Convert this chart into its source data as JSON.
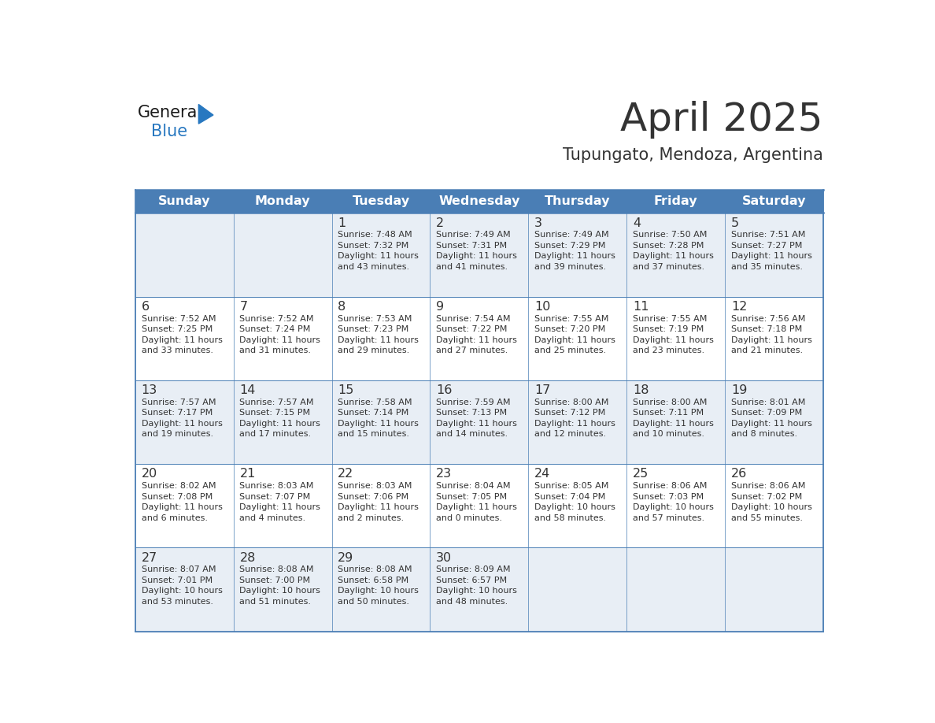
{
  "title": "April 2025",
  "subtitle": "Tupungato, Mendoza, Argentina",
  "header_bg_color": "#4a7eb5",
  "header_text_color": "#ffffff",
  "weekdays": [
    "Sunday",
    "Monday",
    "Tuesday",
    "Wednesday",
    "Thursday",
    "Friday",
    "Saturday"
  ],
  "row0_bg": "#e8eef5",
  "row1_bg": "#ffffff",
  "border_color": "#4a7eb5",
  "text_color": "#333333",
  "logo_general_color": "#1a1a1a",
  "logo_blue_color": "#2878c0",
  "days": [
    {
      "day": null,
      "col": 0,
      "row": 0
    },
    {
      "day": null,
      "col": 1,
      "row": 0
    },
    {
      "day": 1,
      "col": 2,
      "row": 0,
      "sunrise": "7:48 AM",
      "sunset": "7:32 PM",
      "daylight_h": "11 hours",
      "daylight_m": "and 43 minutes."
    },
    {
      "day": 2,
      "col": 3,
      "row": 0,
      "sunrise": "7:49 AM",
      "sunset": "7:31 PM",
      "daylight_h": "11 hours",
      "daylight_m": "and 41 minutes."
    },
    {
      "day": 3,
      "col": 4,
      "row": 0,
      "sunrise": "7:49 AM",
      "sunset": "7:29 PM",
      "daylight_h": "11 hours",
      "daylight_m": "and 39 minutes."
    },
    {
      "day": 4,
      "col": 5,
      "row": 0,
      "sunrise": "7:50 AM",
      "sunset": "7:28 PM",
      "daylight_h": "11 hours",
      "daylight_m": "and 37 minutes."
    },
    {
      "day": 5,
      "col": 6,
      "row": 0,
      "sunrise": "7:51 AM",
      "sunset": "7:27 PM",
      "daylight_h": "11 hours",
      "daylight_m": "and 35 minutes."
    },
    {
      "day": 6,
      "col": 0,
      "row": 1,
      "sunrise": "7:52 AM",
      "sunset": "7:25 PM",
      "daylight_h": "11 hours",
      "daylight_m": "and 33 minutes."
    },
    {
      "day": 7,
      "col": 1,
      "row": 1,
      "sunrise": "7:52 AM",
      "sunset": "7:24 PM",
      "daylight_h": "11 hours",
      "daylight_m": "and 31 minutes."
    },
    {
      "day": 8,
      "col": 2,
      "row": 1,
      "sunrise": "7:53 AM",
      "sunset": "7:23 PM",
      "daylight_h": "11 hours",
      "daylight_m": "and 29 minutes."
    },
    {
      "day": 9,
      "col": 3,
      "row": 1,
      "sunrise": "7:54 AM",
      "sunset": "7:22 PM",
      "daylight_h": "11 hours",
      "daylight_m": "and 27 minutes."
    },
    {
      "day": 10,
      "col": 4,
      "row": 1,
      "sunrise": "7:55 AM",
      "sunset": "7:20 PM",
      "daylight_h": "11 hours",
      "daylight_m": "and 25 minutes."
    },
    {
      "day": 11,
      "col": 5,
      "row": 1,
      "sunrise": "7:55 AM",
      "sunset": "7:19 PM",
      "daylight_h": "11 hours",
      "daylight_m": "and 23 minutes."
    },
    {
      "day": 12,
      "col": 6,
      "row": 1,
      "sunrise": "7:56 AM",
      "sunset": "7:18 PM",
      "daylight_h": "11 hours",
      "daylight_m": "and 21 minutes."
    },
    {
      "day": 13,
      "col": 0,
      "row": 2,
      "sunrise": "7:57 AM",
      "sunset": "7:17 PM",
      "daylight_h": "11 hours",
      "daylight_m": "and 19 minutes."
    },
    {
      "day": 14,
      "col": 1,
      "row": 2,
      "sunrise": "7:57 AM",
      "sunset": "7:15 PM",
      "daylight_h": "11 hours",
      "daylight_m": "and 17 minutes."
    },
    {
      "day": 15,
      "col": 2,
      "row": 2,
      "sunrise": "7:58 AM",
      "sunset": "7:14 PM",
      "daylight_h": "11 hours",
      "daylight_m": "and 15 minutes."
    },
    {
      "day": 16,
      "col": 3,
      "row": 2,
      "sunrise": "7:59 AM",
      "sunset": "7:13 PM",
      "daylight_h": "11 hours",
      "daylight_m": "and 14 minutes."
    },
    {
      "day": 17,
      "col": 4,
      "row": 2,
      "sunrise": "8:00 AM",
      "sunset": "7:12 PM",
      "daylight_h": "11 hours",
      "daylight_m": "and 12 minutes."
    },
    {
      "day": 18,
      "col": 5,
      "row": 2,
      "sunrise": "8:00 AM",
      "sunset": "7:11 PM",
      "daylight_h": "11 hours",
      "daylight_m": "and 10 minutes."
    },
    {
      "day": 19,
      "col": 6,
      "row": 2,
      "sunrise": "8:01 AM",
      "sunset": "7:09 PM",
      "daylight_h": "11 hours",
      "daylight_m": "and 8 minutes."
    },
    {
      "day": 20,
      "col": 0,
      "row": 3,
      "sunrise": "8:02 AM",
      "sunset": "7:08 PM",
      "daylight_h": "11 hours",
      "daylight_m": "and 6 minutes."
    },
    {
      "day": 21,
      "col": 1,
      "row": 3,
      "sunrise": "8:03 AM",
      "sunset": "7:07 PM",
      "daylight_h": "11 hours",
      "daylight_m": "and 4 minutes."
    },
    {
      "day": 22,
      "col": 2,
      "row": 3,
      "sunrise": "8:03 AM",
      "sunset": "7:06 PM",
      "daylight_h": "11 hours",
      "daylight_m": "and 2 minutes."
    },
    {
      "day": 23,
      "col": 3,
      "row": 3,
      "sunrise": "8:04 AM",
      "sunset": "7:05 PM",
      "daylight_h": "11 hours",
      "daylight_m": "and 0 minutes."
    },
    {
      "day": 24,
      "col": 4,
      "row": 3,
      "sunrise": "8:05 AM",
      "sunset": "7:04 PM",
      "daylight_h": "10 hours",
      "daylight_m": "and 58 minutes."
    },
    {
      "day": 25,
      "col": 5,
      "row": 3,
      "sunrise": "8:06 AM",
      "sunset": "7:03 PM",
      "daylight_h": "10 hours",
      "daylight_m": "and 57 minutes."
    },
    {
      "day": 26,
      "col": 6,
      "row": 3,
      "sunrise": "8:06 AM",
      "sunset": "7:02 PM",
      "daylight_h": "10 hours",
      "daylight_m": "and 55 minutes."
    },
    {
      "day": 27,
      "col": 0,
      "row": 4,
      "sunrise": "8:07 AM",
      "sunset": "7:01 PM",
      "daylight_h": "10 hours",
      "daylight_m": "and 53 minutes."
    },
    {
      "day": 28,
      "col": 1,
      "row": 4,
      "sunrise": "8:08 AM",
      "sunset": "7:00 PM",
      "daylight_h": "10 hours",
      "daylight_m": "and 51 minutes."
    },
    {
      "day": 29,
      "col": 2,
      "row": 4,
      "sunrise": "8:08 AM",
      "sunset": "6:58 PM",
      "daylight_h": "10 hours",
      "daylight_m": "and 50 minutes."
    },
    {
      "day": 30,
      "col": 3,
      "row": 4,
      "sunrise": "8:09 AM",
      "sunset": "6:57 PM",
      "daylight_h": "10 hours",
      "daylight_m": "and 48 minutes."
    },
    {
      "day": null,
      "col": 4,
      "row": 4
    },
    {
      "day": null,
      "col": 5,
      "row": 4
    },
    {
      "day": null,
      "col": 6,
      "row": 4
    }
  ]
}
